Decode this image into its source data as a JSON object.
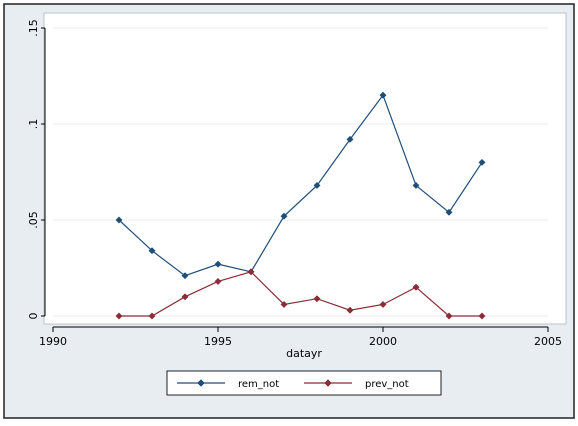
{
  "chart_data": {
    "type": "line",
    "title": "",
    "xlabel": "datayr",
    "ylabel": "",
    "xlim": [
      1990,
      2005
    ],
    "ylim": [
      0,
      0.15
    ],
    "x_ticks": [
      "1990",
      "1995",
      "2000",
      "2005"
    ],
    "y_ticks": [
      "0",
      ".05",
      ".1",
      ".15"
    ],
    "grid": true,
    "legend_position": "bottom",
    "x": [
      1992,
      1993,
      1994,
      1995,
      1996,
      1997,
      1998,
      1999,
      2000,
      2001,
      2002,
      2003
    ],
    "series": [
      {
        "name": "rem_not",
        "color": "#1f4e79",
        "values": [
          0.05,
          0.034,
          0.021,
          0.027,
          0.023,
          0.052,
          0.068,
          0.092,
          0.115,
          0.068,
          0.054,
          0.08
        ]
      },
      {
        "name": "prev_not",
        "color": "#8b2c37",
        "values": [
          0.0,
          0.0,
          0.01,
          0.018,
          0.023,
          0.006,
          0.009,
          0.003,
          0.006,
          0.015,
          0.0,
          0.0
        ]
      }
    ]
  },
  "colors": {
    "frame_background": "#e7edf1",
    "plot_background": "#ffffff",
    "grid": "#e9eef1",
    "axis": "#000000"
  }
}
